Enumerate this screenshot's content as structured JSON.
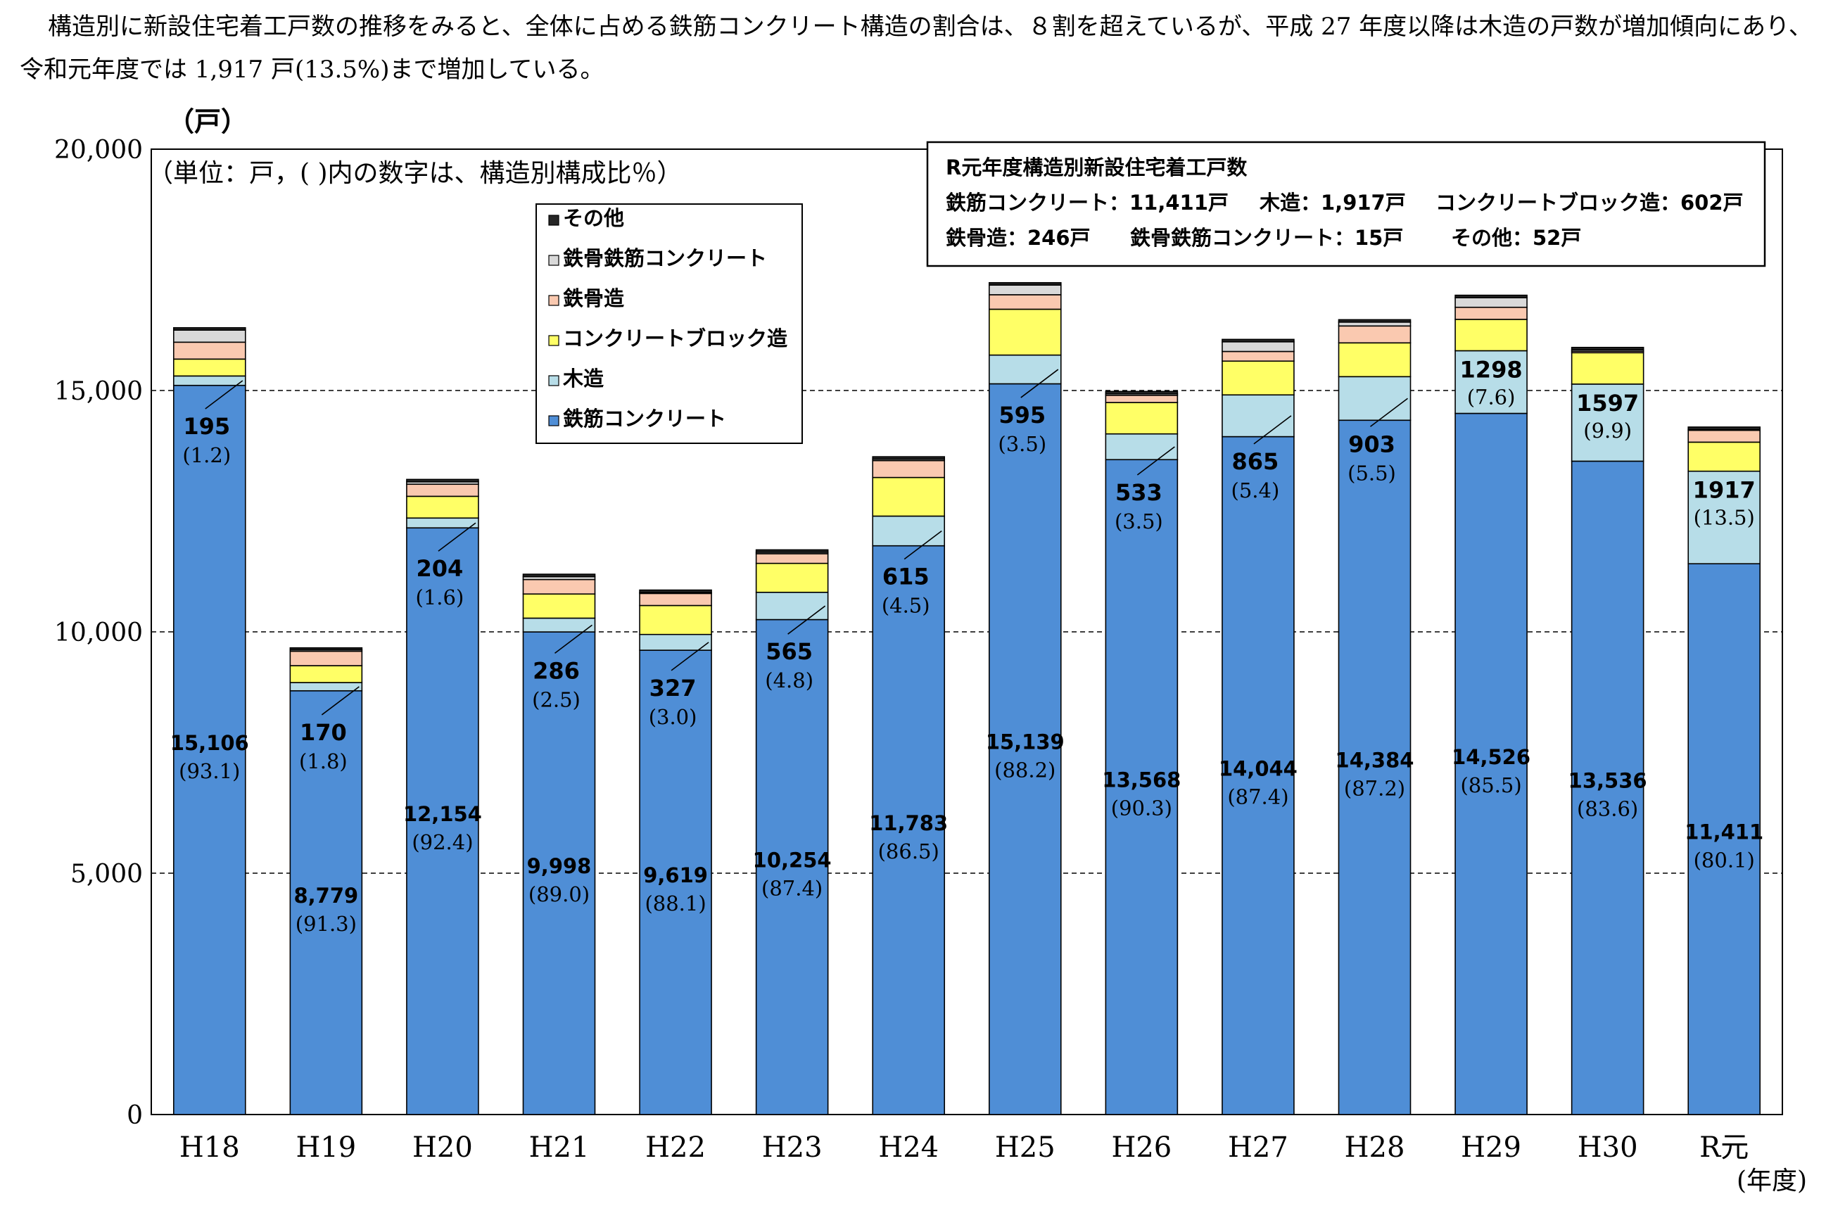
{
  "intro_text": "構造別に新設住宅着工戸数の推移をみると、全体に占める鉄筋コンクリート構造の割合は、８割を超えているが、平成 27 年度以降は木造の戸数が増加傾向にあり、令和元年度では 1,917 戸(13.5%)まで増加している。",
  "colors": {
    "rc": "#4f8ed6",
    "wood": "#b7dde8",
    "block": "#ffff66",
    "steel": "#fac9b0",
    "src": "#d9d9d9",
    "other": "#262626"
  },
  "chart_data": {
    "type": "bar",
    "stacked": true,
    "title": "",
    "ylabel": "（戸）",
    "xlabel": "(年度)",
    "unit_note": "（単位：戸，(  )内の数字は、構造別構成比％）",
    "ylim": [
      0,
      20000
    ],
    "yticks": [
      0,
      5000,
      10000,
      15000,
      20000
    ],
    "ytick_labels": [
      "0",
      "5,000",
      "10,000",
      "15,000",
      "20,000"
    ],
    "grid": "dashed horizontal at 5,000 / 10,000 / 15,000",
    "legend_position": "top-left (inside)",
    "categories": [
      "H18",
      "H19",
      "H20",
      "H21",
      "H22",
      "H23",
      "H24",
      "H25",
      "H26",
      "H27",
      "H28",
      "H29",
      "H30",
      "R元"
    ],
    "series": [
      {
        "key": "rc",
        "name": "鉄筋コンクリート",
        "values": [
          15106,
          8779,
          12154,
          9998,
          9619,
          10254,
          11783,
          15139,
          13568,
          14044,
          14384,
          14526,
          13536,
          11411
        ],
        "labels": [
          "15,106",
          "8,779",
          "12,154",
          "9,998",
          "9,619",
          "10,254",
          "11,783",
          "15,139",
          "13,568",
          "14,044",
          "14,384",
          "14,526",
          "13,536",
          "11,411"
        ],
        "pct_labels": [
          "(93.1)",
          "(91.3)",
          "(92.4)",
          "(89.0)",
          "(88.1)",
          "(87.4)",
          "(86.5)",
          "(88.2)",
          "(90.3)",
          "(87.4)",
          "(87.2)",
          "(85.5)",
          "(83.6)",
          "(80.1)"
        ]
      },
      {
        "key": "wood",
        "name": "木造",
        "values": [
          195,
          170,
          204,
          286,
          327,
          565,
          615,
          595,
          533,
          865,
          903,
          1298,
          1597,
          1917
        ],
        "labels": [
          "195",
          "170",
          "204",
          "286",
          "327",
          "565",
          "615",
          "595",
          "533",
          "865",
          "903",
          "1298",
          "1597",
          "1917"
        ],
        "pct_labels": [
          "(1.2)",
          "(1.8)",
          "(1.6)",
          "(2.5)",
          "(3.0)",
          "(4.8)",
          "(4.5)",
          "(3.5)",
          "(3.5)",
          "(5.4)",
          "(5.5)",
          "(7.6)",
          "(9.9)",
          "(13.5)"
        ]
      },
      {
        "key": "block",
        "name": "コンクリートブロック造",
        "values": [
          350,
          350,
          450,
          500,
          600,
          600,
          800,
          950,
          650,
          700,
          700,
          650,
          650,
          602
        ]
      },
      {
        "key": "steel",
        "name": "鉄骨造",
        "values": [
          350,
          300,
          250,
          300,
          250,
          200,
          350,
          300,
          150,
          200,
          350,
          250,
          30,
          246
        ]
      },
      {
        "key": "src",
        "name": "鉄骨鉄筋コンクリート",
        "values": [
          250,
          30,
          50,
          60,
          20,
          30,
          30,
          200,
          30,
          200,
          80,
          200,
          30,
          15
        ]
      },
      {
        "key": "other",
        "name": "その他",
        "values": [
          50,
          40,
          50,
          50,
          50,
          50,
          50,
          50,
          50,
          50,
          50,
          50,
          50,
          52
        ]
      }
    ]
  },
  "legend": {
    "items": [
      "その他",
      "鉄骨鉄筋コンクリート",
      "鉄骨造",
      "コンクリートブロック造",
      "木造",
      "鉄筋コンクリート"
    ],
    "keys": [
      "other",
      "src",
      "steel",
      "block",
      "wood",
      "rc"
    ]
  },
  "info_box": {
    "title": "R元年度構造別新設住宅着工戸数",
    "line1": [
      "鉄筋コンクリート：11,411戸",
      "木造：1,917戸",
      "コンクリートブロック造：602戸"
    ],
    "line2": [
      "鉄骨造：246戸",
      "鉄骨鉄筋コンクリート：15戸",
      "その他：52戸"
    ]
  }
}
